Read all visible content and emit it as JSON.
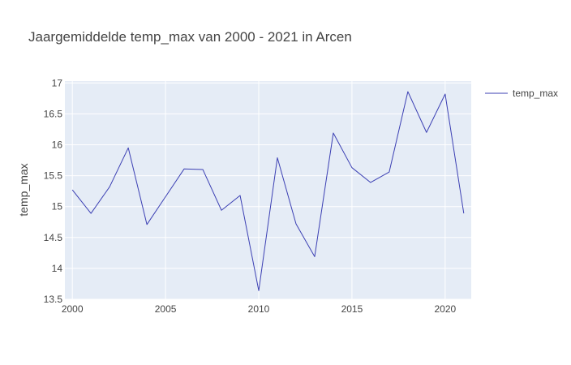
{
  "colors": {
    "line": "#3b3fb3",
    "plot_bg": "#e5ecf6",
    "grid": "#ffffff"
  },
  "chart_data": {
    "type": "line",
    "title": "Jaargemiddelde temp_max  van 2000 - 2021 in Arcen",
    "xlabel": "",
    "ylabel": "temp_max",
    "xlim": [
      1999.6,
      2021.4
    ],
    "ylim": [
      13.5,
      17.03
    ],
    "x_ticks": [
      2000,
      2005,
      2010,
      2015,
      2020
    ],
    "y_ticks": [
      13.5,
      14,
      14.5,
      15,
      15.5,
      16,
      16.5,
      17
    ],
    "grid": true,
    "legend_position": "top-right",
    "series": [
      {
        "name": "temp_max",
        "x": [
          2000,
          2001,
          2002,
          2003,
          2004,
          2005,
          2006,
          2007,
          2008,
          2009,
          2010,
          2011,
          2012,
          2013,
          2014,
          2015,
          2016,
          2017,
          2018,
          2019,
          2020,
          2021
        ],
        "values": [
          15.27,
          14.89,
          15.32,
          15.95,
          14.71,
          15.16,
          15.61,
          15.6,
          14.94,
          15.18,
          13.64,
          15.79,
          14.72,
          14.19,
          16.19,
          15.63,
          15.39,
          15.56,
          16.86,
          16.2,
          16.82,
          14.89
        ]
      }
    ]
  }
}
